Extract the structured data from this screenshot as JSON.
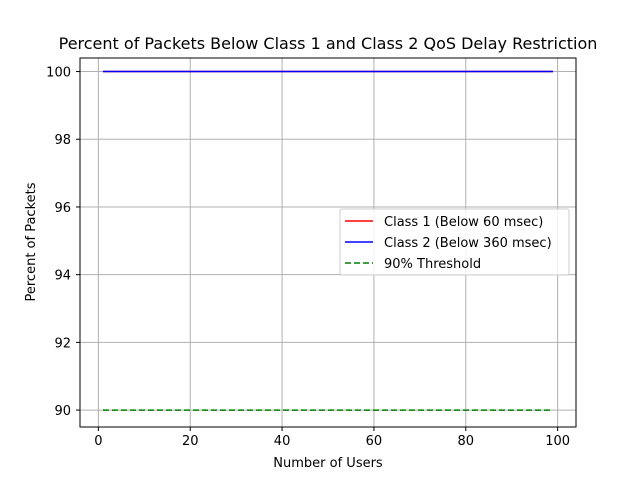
{
  "chart_data": {
    "type": "line",
    "title": "Percent of Packets Below Class 1 and Class 2 QoS Delay Restriction",
    "xlabel": "Number of Users",
    "ylabel": "Percent of Packets",
    "xlim": [
      -4,
      104
    ],
    "ylim": [
      89.5,
      100.4
    ],
    "xticks": [
      0,
      20,
      40,
      60,
      80,
      100
    ],
    "yticks": [
      90,
      92,
      94,
      96,
      98,
      100
    ],
    "grid": true,
    "legend_position": "center-right",
    "series": [
      {
        "name": "Class 1 (Below 60 msec)",
        "color": "#ff0000",
        "style": "solid",
        "x": [
          1,
          99
        ],
        "y": [
          100,
          100
        ]
      },
      {
        "name": "Class 2 (Below 360 msec)",
        "color": "#0000ff",
        "style": "solid",
        "x": [
          1,
          99
        ],
        "y": [
          100,
          100
        ]
      },
      {
        "name": "90% Threshold",
        "color": "#008000",
        "style": "dashed",
        "x": [
          1,
          99
        ],
        "y": [
          90,
          90
        ]
      }
    ]
  }
}
